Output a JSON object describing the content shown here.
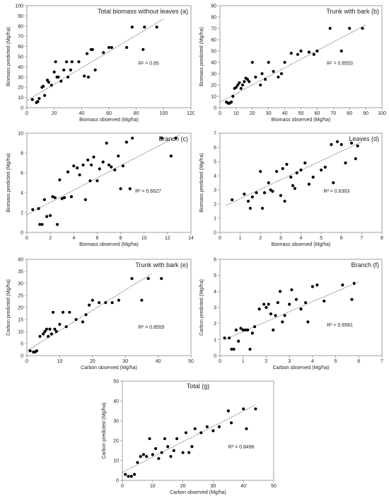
{
  "chart_data": [
    {
      "type": "scatter",
      "title": "Total biomass without leaves (a)",
      "xlabel": "Biomass observed (Mg/ha)",
      "ylabel": "Biomass predicted (Mg/ha)",
      "r2_label": "R² = 0.85",
      "xlim": [
        0,
        120
      ],
      "ylim": [
        0,
        100
      ],
      "xticks": [
        "0",
        "20",
        "40",
        "60",
        "80",
        "100",
        "120"
      ],
      "yticks": [
        "0",
        "10",
        "20",
        "30",
        "40",
        "50",
        "60",
        "70",
        "80",
        "90",
        "100"
      ],
      "x": [
        4,
        7,
        8,
        9,
        11,
        12,
        13,
        15,
        16,
        18,
        20,
        21,
        22,
        23,
        25,
        27,
        29,
        30,
        32,
        33,
        38,
        42,
        44,
        45,
        47,
        48,
        50,
        56,
        60,
        62,
        73,
        77,
        85,
        86,
        95
      ],
      "y": [
        8,
        5,
        6,
        9,
        20,
        21,
        12,
        27,
        25,
        22,
        35,
        45,
        30,
        30,
        26,
        37,
        45,
        30,
        37,
        45,
        45,
        31,
        53,
        30,
        57,
        57,
        37,
        54,
        59,
        59,
        59,
        79,
        57,
        79,
        79
      ],
      "trendline": [
        [
          0,
          7
        ],
        [
          100,
          87
        ]
      ],
      "grid": false
    },
    {
      "type": "scatter",
      "title": "Trunk with bark (b)",
      "xlabel": "Biomass observed (Mg/ha)",
      "ylabel": "Biomass predicted (Mg/ha)",
      "r2_label": "R² = 0.8553",
      "xlim": [
        0,
        100
      ],
      "ylim": [
        0,
        90
      ],
      "xticks": [
        "0",
        "10",
        "20",
        "30",
        "40",
        "50",
        "60",
        "70",
        "80",
        "90",
        "100"
      ],
      "yticks": [
        "0",
        "10",
        "20",
        "30",
        "40",
        "50",
        "60",
        "70",
        "80",
        "90"
      ],
      "x": [
        4,
        5,
        6,
        7,
        8,
        9,
        10,
        11,
        12,
        13,
        14,
        15,
        16,
        17,
        18,
        20,
        22,
        25,
        26,
        28,
        30,
        33,
        36,
        38,
        40,
        44,
        48,
        50,
        55,
        58,
        60,
        68,
        75,
        80,
        88
      ],
      "y": [
        5,
        4,
        4,
        5,
        10,
        17,
        18,
        20,
        22,
        17,
        20,
        23,
        26,
        25,
        23,
        40,
        27,
        20,
        30,
        25,
        40,
        32,
        27,
        30,
        40,
        48,
        47,
        50,
        49,
        47,
        50,
        70,
        50,
        70,
        70
      ],
      "trendline": [
        [
          0,
          5
        ],
        [
          90,
          73
        ]
      ],
      "grid": false
    },
    {
      "type": "scatter",
      "title": "Branch (c)",
      "xlabel": "Biomass observed (Mg/ha)",
      "ylabel": "Biomass predicted (Mg/ha)",
      "r2_label": "R² = 0.6627",
      "xlim": [
        0,
        14
      ],
      "ylim": [
        0,
        10
      ],
      "xticks": [
        "0",
        "2",
        "4",
        "6",
        "8",
        "10",
        "12",
        "14"
      ],
      "yticks": [
        "0",
        "2",
        "4",
        "6",
        "8",
        "10"
      ],
      "x": [
        0.5,
        1,
        1.1,
        1.3,
        1.5,
        1.7,
        2,
        2.2,
        2.4,
        2.6,
        2.8,
        3,
        3.2,
        3.5,
        3.8,
        4,
        4.3,
        4.5,
        4.8,
        5,
        5.2,
        5.4,
        5.5,
        5.7,
        6,
        6.2,
        6.5,
        6.8,
        7,
        7.2,
        7.5,
        7.8,
        8,
        8.2,
        8.5,
        8.8,
        9,
        11.5,
        12.3,
        12.7
      ],
      "y": [
        2.3,
        2.4,
        0.8,
        0.8,
        3.3,
        1.6,
        1.7,
        3.6,
        3.5,
        0.8,
        5.3,
        3.4,
        3.5,
        6.1,
        3.6,
        6.7,
        6.5,
        5.8,
        6.8,
        3.3,
        7.3,
        5.2,
        6.8,
        7.6,
        5.2,
        6.4,
        7.1,
        9.0,
        6.8,
        6.6,
        6.3,
        7.7,
        4.4,
        6.7,
        9.1,
        4.4,
        9.5,
        9.5,
        7.7,
        9.5
      ],
      "trendline": [
        [
          0,
          1.8
        ],
        [
          13,
          9.8
        ]
      ],
      "grid": false
    },
    {
      "type": "scatter",
      "title": "Leaves (d)",
      "xlabel": "Biomass observed (Mg/ha)",
      "ylabel": "Biomass predicted (Mg/ha)",
      "r2_label": "R² = 0.6303",
      "xlim": [
        0,
        8
      ],
      "ylim": [
        0,
        7
      ],
      "xticks": [
        "0",
        "1",
        "2",
        "3",
        "4",
        "5",
        "6",
        "7",
        "8"
      ],
      "yticks": [
        "0",
        "1",
        "2",
        "3",
        "4",
        "5",
        "6",
        "7"
      ],
      "x": [
        0.6,
        1.2,
        1.4,
        1.5,
        1.6,
        1.8,
        2.0,
        2.1,
        2.2,
        2.4,
        2.5,
        2.6,
        2.8,
        3.0,
        3.1,
        3.2,
        3.3,
        3.5,
        3.6,
        3.7,
        3.8,
        4.0,
        4.2,
        4.4,
        4.6,
        5.0,
        5.2,
        5.5,
        5.6,
        5.8,
        6.0,
        6.2,
        6.5,
        6.7,
        6.8
      ],
      "y": [
        2.3,
        2.7,
        2.2,
        1.7,
        2.5,
        2.8,
        4.3,
        1.7,
        2.8,
        3.5,
        3.0,
        2.9,
        4.3,
        2.6,
        4.5,
        2.2,
        4.8,
        3.9,
        3.3,
        3.1,
        4.2,
        4.4,
        4.9,
        3.4,
        3.9,
        4.4,
        4.6,
        6.2,
        3.5,
        6.4,
        6.2,
        4.9,
        6.3,
        5.2,
        6.1
      ],
      "trendline": [
        [
          0.3,
          1.9
        ],
        [
          7,
          6.4
        ]
      ],
      "grid": false
    },
    {
      "type": "scatter",
      "title": "Trunk with bark (e)",
      "xlabel": "Carbon observed (Mg/ha)",
      "ylabel": "Carbon predicted (Mg/ha)",
      "r2_label": "R² = 0.8555",
      "xlim": [
        0,
        50
      ],
      "ylim": [
        0,
        40
      ],
      "xticks": [
        "0",
        "10",
        "20",
        "30",
        "40",
        "50"
      ],
      "yticks": [
        "0",
        "5",
        "10",
        "15",
        "20",
        "25",
        "30",
        "35",
        "40"
      ],
      "x": [
        1,
        2,
        2.5,
        3,
        4,
        5,
        5.5,
        6,
        6.5,
        7,
        7.5,
        8,
        8.5,
        9,
        10,
        11,
        12,
        13,
        15,
        17,
        18,
        19,
        20,
        22,
        24,
        26,
        28,
        32,
        35,
        37,
        41
      ],
      "y": [
        2,
        1.5,
        1.5,
        2,
        8,
        9,
        10,
        11,
        8,
        11,
        9,
        18,
        11,
        10,
        13,
        18,
        12,
        18,
        15,
        14,
        17,
        21,
        23,
        22,
        22,
        22,
        23,
        32,
        23,
        32,
        32
      ],
      "trendline": [
        [
          0,
          2
        ],
        [
          38,
          34
        ]
      ],
      "grid": false
    },
    {
      "type": "scatter",
      "title": "Branch (f)",
      "xlabel": "Carbon observed (Mg/ha)",
      "ylabel": "Carbon predicted (Mg/ha)",
      "r2_label": "R² = 0.6581",
      "xlim": [
        0,
        7
      ],
      "ylim": [
        0,
        6
      ],
      "xticks": [
        "0",
        "1",
        "2",
        "3",
        "4",
        "5",
        "6",
        "7"
      ],
      "yticks": [
        "0",
        "1",
        "2",
        "3",
        "4",
        "5",
        "6"
      ],
      "x": [
        0.2,
        0.4,
        0.5,
        0.6,
        0.7,
        0.8,
        0.9,
        1.0,
        1.1,
        1.2,
        1.3,
        1.4,
        1.5,
        1.7,
        1.9,
        2.0,
        2.1,
        2.2,
        2.3,
        2.4,
        2.5,
        2.6,
        2.7,
        2.8,
        3.0,
        3.1,
        3.3,
        3.5,
        3.7,
        3.8,
        4.0,
        4.2,
        4.5,
        5.3,
        5.7,
        5.8
      ],
      "y": [
        1.1,
        1.1,
        0.4,
        0.4,
        1.6,
        0.9,
        1.7,
        1.6,
        1.6,
        1.6,
        0.4,
        1.4,
        1.8,
        2.9,
        3.2,
        3.0,
        3.2,
        2.6,
        1.6,
        2.5,
        3.3,
        4.0,
        2.1,
        2.5,
        3.2,
        4.1,
        3.5,
        2.9,
        3.3,
        2.1,
        4.3,
        4.4,
        3.4,
        4.4,
        3.5,
        4.5
      ],
      "trendline": [
        [
          0.2,
          1.0
        ],
        [
          6,
          4.6
        ]
      ],
      "grid": false
    },
    {
      "type": "scatter",
      "title": "Total (g)",
      "xlabel": "Carbon observed (Mg/ha)",
      "ylabel": "Carbon predicted (Mg/ha)",
      "r2_label": "R² = 0.8496",
      "xlim": [
        0,
        50
      ],
      "ylim": [
        0,
        50
      ],
      "xticks": [
        "0",
        "10",
        "20",
        "30",
        "40",
        "50"
      ],
      "yticks": [
        "0",
        "10",
        "20",
        "30",
        "40",
        "50"
      ],
      "x": [
        1,
        2,
        3,
        4,
        5,
        6,
        7,
        8,
        9,
        10,
        11,
        12,
        13,
        14,
        15,
        16,
        17,
        18,
        20,
        21,
        22,
        23,
        24,
        26,
        28,
        30,
        32,
        35,
        36,
        40,
        41,
        44
      ],
      "y": [
        3,
        2,
        2,
        3,
        9,
        12,
        13,
        12,
        21,
        13,
        16,
        11,
        14,
        21,
        17,
        12,
        15,
        21,
        14,
        24,
        14,
        17,
        26,
        24,
        27,
        25,
        27,
        35,
        29,
        36,
        26,
        36
      ],
      "trendline": [
        [
          0,
          4
        ],
        [
          44,
          38
        ]
      ],
      "grid": false
    }
  ]
}
